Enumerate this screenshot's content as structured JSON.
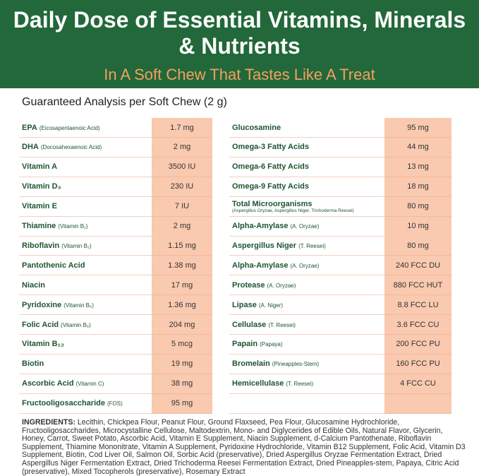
{
  "header": {
    "title": "Daily Dose of Essential Vitamins, Minerals & Nutrients",
    "subtitle": "In A Soft Chew That Tastes Like A Treat"
  },
  "analysis": {
    "heading": "Guaranteed Analysis per Soft Chew (2 g)",
    "left": [
      {
        "name": "EPA",
        "note": "(Eicosapentaenoic Acid)",
        "value": "1.7 mg"
      },
      {
        "name": "DHA",
        "note": "(Docosahexaenoic Acid)",
        "value": "2 mg"
      },
      {
        "name": "Vitamin A",
        "value": "3500 IU"
      },
      {
        "name": "Vitamin D₃",
        "value": "230 IU"
      },
      {
        "name": "Vitamin E",
        "value": "7 IU"
      },
      {
        "name": "Thiamine",
        "note": "(Vitamin B₁)",
        "value": "2 mg"
      },
      {
        "name": "Riboflavin",
        "note": "(Vitamin B₂)",
        "value": "1.15 mg"
      },
      {
        "name": "Pantothenic Acid",
        "value": "1.38 mg"
      },
      {
        "name": "Niacin",
        "value": "17 mg"
      },
      {
        "name": "Pyridoxine",
        "note": "(Vitamin B₆)",
        "value": "1.36 mg"
      },
      {
        "name": "Folic Acid",
        "note": "(Vitamin B₉)",
        "value": "204 mg"
      },
      {
        "name": "Vitamin B₁₂",
        "value": "5 mcg"
      },
      {
        "name": "Biotin",
        "value": "19 mg"
      },
      {
        "name": "Ascorbic Acid",
        "note": "(Vitamin C)",
        "value": "38 mg"
      },
      {
        "name": "Fructooligosaccharide",
        "note": "(FOS)",
        "value": "95 mg"
      }
    ],
    "right": [
      {
        "name": "Glucosamine",
        "value": "95 mg"
      },
      {
        "name": "Omega-3 Fatty Acids",
        "value": "44 mg"
      },
      {
        "name": "Omega-6 Fatty Acids",
        "value": "13 mg"
      },
      {
        "name": "Omega-9 Fatty Acids",
        "value": "18 mg"
      },
      {
        "name": "Total Microorganisms",
        "note": "(Aspergillus Oryzae, Aspergillus Niger, Trichoderma Reesei)",
        "value": "80 mg"
      },
      {
        "name": "Alpha-Amylase",
        "note": "(A. Oryzae)",
        "value": "10 mg"
      },
      {
        "name": "Aspergillus Niger",
        "note": "(T. Reesei)",
        "value": "80 mg"
      },
      {
        "name": "Alpha-Amylase",
        "note": "(A. Oryzae)",
        "value": "240 FCC DU"
      },
      {
        "name": "Protease",
        "note": "(A. Oryzae)",
        "value": "880 FCC HUT"
      },
      {
        "name": "Lipase",
        "note": "(A. Niger)",
        "value": "8.8 FCC LU"
      },
      {
        "name": "Cellulase",
        "note": "(T. Reesei)",
        "value": "3.6 FCC CU"
      },
      {
        "name": "Papain",
        "note": "(Papaya)",
        "value": "200 FCC PU"
      },
      {
        "name": "Bromelain",
        "note": "(Pineapples-Stem)",
        "value": "160 FCC PU"
      },
      {
        "name": "Hemicellulase",
        "note": "(T. Reesei)",
        "value": "4 FCC CU"
      }
    ]
  },
  "ingredients": {
    "label": "INGREDIENTS:",
    "text": "Lecithin, Chickpea Flour, Peanut Flour, Ground Flaxseed, Pea Flour, Glucosamine Hydrochloride, Fructooligosaccharides, Microcystalline Cellulose, Maltodextrin, Mono- and Diglycerides of Edible Oils, Natural Flavor, Glycerin, Honey, Carrot, Sweet Potato, Ascorbic Acid, Vitamin E Supplement, Niacin Supplement, d-Calcium Pantothenate, Riboflavin Supplement, Thiamine Mononitrate, Vitamin A Supplement, Pyridoxine Hydrochloride, Vitamin B12 Supplement, Folic Acid, Vitamin D3 Supplement, Biotin, Cod Liver Oil, Salmon Oil, Sorbic Acid (preservative), Dried Aspergillus Oryzae Fermentation Extract, Dried Aspergillus Niger Fermentation Extract, Dried Trichoderma Reesei Fermentation Extract, Dried Pineapples-stem, Papaya, Citric Acid (preservative), Mixed Tocopherols (preservative), Rosemary Extract"
  }
}
